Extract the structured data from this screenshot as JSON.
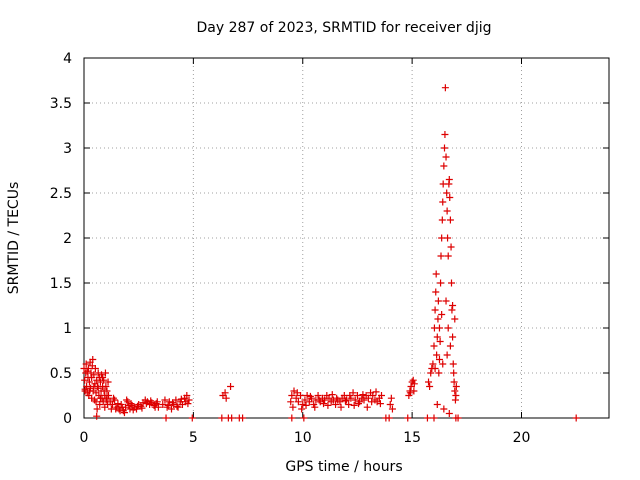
{
  "chart_data": {
    "type": "scatter",
    "title": "Day 287 of 2023, SRMTID for receiver djig",
    "xlabel": "GPS time / hours",
    "ylabel": "SRMTID / TECUs",
    "xlim": [
      0,
      24
    ],
    "ylim": [
      0,
      4
    ],
    "x_ticks": [
      0,
      5,
      10,
      15,
      20
    ],
    "y_ticks": [
      0,
      0.5,
      1,
      1.5,
      2,
      2.5,
      3,
      3.5,
      4
    ],
    "x_tick_labels": [
      "0",
      "5",
      "10",
      "15",
      "20"
    ],
    "y_tick_labels": [
      "0",
      "0.5",
      "1",
      "1.5",
      "2",
      "2.5",
      "3",
      "3.5",
      "4"
    ],
    "grid": true,
    "marker": "+",
    "series": [
      {
        "name": "SRMTID",
        "color": "#dd0000",
        "points": [
          [
            0.0,
            0.55
          ],
          [
            0.03,
            0.42
          ],
          [
            0.05,
            0.3
          ],
          [
            0.08,
            0.5
          ],
          [
            0.1,
            0.6
          ],
          [
            0.12,
            0.35
          ],
          [
            0.15,
            0.28
          ],
          [
            0.18,
            0.45
          ],
          [
            0.2,
            0.55
          ],
          [
            0.22,
            0.25
          ],
          [
            0.25,
            0.4
          ],
          [
            0.28,
            0.62
          ],
          [
            0.3,
            0.33
          ],
          [
            0.32,
            0.5
          ],
          [
            0.35,
            0.22
          ],
          [
            0.38,
            0.58
          ],
          [
            0.4,
            0.65
          ],
          [
            0.42,
            0.3
          ],
          [
            0.45,
            0.48
          ],
          [
            0.48,
            0.2
          ],
          [
            0.5,
            0.38
          ],
          [
            0.52,
            0.55
          ],
          [
            0.55,
            0.28
          ],
          [
            0.58,
            0.42
          ],
          [
            0.6,
            0.1
          ],
          [
            0.62,
            0.35
          ],
          [
            0.65,
            0.5
          ],
          [
            0.68,
            0.25
          ],
          [
            0.7,
            0.45
          ],
          [
            0.72,
            0.15
          ],
          [
            0.75,
            0.4
          ],
          [
            0.78,
            0.3
          ],
          [
            0.8,
            0.48
          ],
          [
            0.82,
            0.22
          ],
          [
            0.85,
            0.35
          ],
          [
            0.88,
            0.18
          ],
          [
            0.9,
            0.42
          ],
          [
            0.92,
            0.3
          ],
          [
            0.95,
            0.25
          ],
          [
            0.98,
            0.5
          ],
          [
            1.0,
            0.35
          ],
          [
            1.02,
            0.2
          ],
          [
            1.05,
            0.3
          ],
          [
            1.08,
            0.15
          ],
          [
            1.1,
            0.4
          ],
          [
            1.12,
            0.25
          ],
          [
            0.05,
            0.32
          ],
          [
            0.15,
            0.52
          ],
          [
            0.25,
            0.3
          ],
          [
            0.35,
            0.45
          ],
          [
            0.45,
            0.35
          ],
          [
            0.55,
            0.18
          ],
          [
            0.65,
            0.33
          ],
          [
            0.75,
            0.22
          ],
          [
            0.85,
            0.45
          ],
          [
            0.95,
            0.12
          ],
          [
            1.05,
            0.22
          ],
          [
            0.58,
            0.02
          ],
          [
            1.2,
            0.18
          ],
          [
            1.3,
            0.15
          ],
          [
            1.4,
            0.2
          ],
          [
            1.5,
            0.12
          ],
          [
            1.6,
            0.1
          ],
          [
            1.7,
            0.15
          ],
          [
            1.8,
            0.08
          ],
          [
            1.9,
            0.12
          ],
          [
            2.0,
            0.18
          ],
          [
            2.1,
            0.1
          ],
          [
            2.2,
            0.14
          ],
          [
            2.3,
            0.12
          ],
          [
            2.4,
            0.1
          ],
          [
            2.5,
            0.15
          ],
          [
            2.6,
            0.13
          ],
          [
            2.7,
            0.17
          ],
          [
            2.8,
            0.2
          ],
          [
            2.9,
            0.18
          ],
          [
            3.0,
            0.15
          ],
          [
            3.1,
            0.17
          ],
          [
            3.2,
            0.14
          ],
          [
            3.3,
            0.16
          ],
          [
            3.4,
            0.12
          ],
          [
            1.25,
            0.1
          ],
          [
            1.35,
            0.22
          ],
          [
            1.45,
            0.1
          ],
          [
            1.55,
            0.16
          ],
          [
            1.65,
            0.08
          ],
          [
            1.75,
            0.12
          ],
          [
            1.85,
            0.06
          ],
          [
            1.95,
            0.2
          ],
          [
            2.05,
            0.14
          ],
          [
            2.15,
            0.16
          ],
          [
            2.25,
            0.09
          ],
          [
            2.45,
            0.13
          ],
          [
            2.65,
            0.11
          ],
          [
            2.85,
            0.16
          ],
          [
            3.05,
            0.19
          ],
          [
            3.25,
            0.12
          ],
          [
            3.35,
            0.18
          ],
          [
            3.6,
            0.15
          ],
          [
            3.7,
            0.2
          ],
          [
            3.8,
            0.12
          ],
          [
            3.9,
            0.18
          ],
          [
            4.0,
            0.1
          ],
          [
            4.1,
            0.15
          ],
          [
            4.2,
            0.2
          ],
          [
            4.3,
            0.12
          ],
          [
            4.4,
            0.18
          ],
          [
            4.5,
            0.15
          ],
          [
            4.6,
            0.22
          ],
          [
            4.7,
            0.25
          ],
          [
            4.8,
            0.2
          ],
          [
            3.75,
            0.0
          ],
          [
            4.95,
            0.0
          ],
          [
            3.85,
            0.14
          ],
          [
            4.05,
            0.17
          ],
          [
            4.25,
            0.13
          ],
          [
            4.45,
            0.21
          ],
          [
            4.65,
            0.18
          ],
          [
            4.75,
            0.16
          ],
          [
            6.3,
            0.0
          ],
          [
            6.35,
            0.25
          ],
          [
            6.45,
            0.28
          ],
          [
            6.5,
            0.22
          ],
          [
            6.7,
            0.35
          ],
          [
            6.6,
            0.0
          ],
          [
            6.75,
            0.0
          ],
          [
            7.1,
            0.0
          ],
          [
            7.25,
            0.0
          ],
          [
            9.5,
            0.0
          ],
          [
            9.45,
            0.18
          ],
          [
            9.5,
            0.25
          ],
          [
            9.6,
            0.3
          ],
          [
            9.7,
            0.22
          ],
          [
            9.8,
            0.18
          ],
          [
            9.9,
            0.25
          ],
          [
            10.0,
            0.15
          ],
          [
            10.1,
            0.2
          ],
          [
            10.2,
            0.25
          ],
          [
            10.3,
            0.18
          ],
          [
            10.4,
            0.22
          ],
          [
            10.5,
            0.15
          ],
          [
            10.6,
            0.2
          ],
          [
            10.7,
            0.25
          ],
          [
            10.8,
            0.18
          ],
          [
            10.9,
            0.22
          ],
          [
            11.0,
            0.2
          ],
          [
            11.1,
            0.25
          ],
          [
            11.2,
            0.22
          ],
          [
            11.3,
            0.18
          ],
          [
            11.4,
            0.2
          ],
          [
            11.5,
            0.15
          ],
          [
            11.6,
            0.2
          ],
          [
            11.7,
            0.18
          ],
          [
            11.8,
            0.22
          ],
          [
            11.9,
            0.25
          ],
          [
            12.0,
            0.2
          ],
          [
            12.1,
            0.15
          ],
          [
            12.2,
            0.22
          ],
          [
            12.3,
            0.28
          ],
          [
            12.4,
            0.2
          ],
          [
            12.5,
            0.25
          ],
          [
            12.6,
            0.18
          ],
          [
            12.7,
            0.22
          ],
          [
            12.8,
            0.2
          ],
          [
            12.9,
            0.25
          ],
          [
            13.0,
            0.22
          ],
          [
            13.1,
            0.28
          ],
          [
            13.2,
            0.25
          ],
          [
            13.3,
            0.2
          ],
          [
            13.4,
            0.18
          ],
          [
            13.5,
            0.22
          ],
          [
            13.6,
            0.25
          ],
          [
            9.55,
            0.12
          ],
          [
            9.75,
            0.28
          ],
          [
            9.95,
            0.1
          ],
          [
            10.15,
            0.14
          ],
          [
            10.35,
            0.24
          ],
          [
            10.55,
            0.12
          ],
          [
            10.75,
            0.2
          ],
          [
            10.95,
            0.16
          ],
          [
            11.15,
            0.14
          ],
          [
            11.35,
            0.26
          ],
          [
            11.55,
            0.22
          ],
          [
            11.75,
            0.12
          ],
          [
            11.95,
            0.19
          ],
          [
            12.15,
            0.25
          ],
          [
            12.35,
            0.14
          ],
          [
            12.55,
            0.16
          ],
          [
            12.75,
            0.26
          ],
          [
            12.95,
            0.12
          ],
          [
            13.15,
            0.18
          ],
          [
            13.35,
            0.29
          ],
          [
            13.55,
            0.16
          ],
          [
            10.05,
            0.0
          ],
          [
            13.8,
            0.0
          ],
          [
            14.0,
            0.15
          ],
          [
            14.05,
            0.22
          ],
          [
            14.1,
            0.1
          ],
          [
            13.95,
            0.0
          ],
          [
            14.8,
            0.0
          ],
          [
            14.85,
            0.25
          ],
          [
            14.9,
            0.3
          ],
          [
            14.95,
            0.35
          ],
          [
            15.0,
            0.4
          ],
          [
            15.05,
            0.42
          ],
          [
            15.1,
            0.38
          ],
          [
            15.08,
            0.3
          ],
          [
            14.92,
            0.28
          ],
          [
            15.7,
            0.0
          ],
          [
            15.75,
            0.4
          ],
          [
            15.8,
            0.35
          ],
          [
            15.85,
            0.5
          ],
          [
            15.9,
            0.55
          ],
          [
            15.95,
            0.6
          ],
          [
            16.0,
            0.8
          ],
          [
            16.02,
            1.0
          ],
          [
            16.05,
            1.2
          ],
          [
            16.08,
            1.4
          ],
          [
            16.1,
            1.6
          ],
          [
            16.12,
            0.7
          ],
          [
            16.15,
            0.9
          ],
          [
            16.18,
            1.1
          ],
          [
            16.2,
            1.3
          ],
          [
            16.22,
            0.5
          ],
          [
            16.25,
            0.65
          ],
          [
            16.28,
            0.85
          ],
          [
            16.3,
            1.5
          ],
          [
            16.32,
            1.8
          ],
          [
            16.35,
            2.0
          ],
          [
            16.38,
            2.2
          ],
          [
            16.4,
            2.4
          ],
          [
            16.42,
            2.6
          ],
          [
            16.45,
            2.8
          ],
          [
            16.48,
            3.0
          ],
          [
            16.5,
            3.15
          ],
          [
            16.52,
            3.67
          ],
          [
            16.55,
            2.9
          ],
          [
            16.58,
            2.5
          ],
          [
            16.6,
            2.3
          ],
          [
            16.62,
            2.0
          ],
          [
            16.65,
            1.8
          ],
          [
            16.68,
            2.6
          ],
          [
            16.7,
            2.65
          ],
          [
            16.72,
            2.45
          ],
          [
            16.75,
            2.2
          ],
          [
            16.78,
            1.9
          ],
          [
            16.8,
            1.5
          ],
          [
            16.82,
            1.2
          ],
          [
            16.85,
            0.9
          ],
          [
            16.88,
            0.6
          ],
          [
            16.9,
            0.5
          ],
          [
            16.92,
            0.4
          ],
          [
            16.95,
            0.3
          ],
          [
            16.98,
            0.2
          ],
          [
            17.0,
            0.25
          ],
          [
            17.02,
            0.35
          ],
          [
            16.15,
            0.15
          ],
          [
            16.45,
            0.1
          ],
          [
            16.7,
            0.05
          ],
          [
            17.0,
            0.0
          ],
          [
            17.1,
            0.0
          ],
          [
            16.0,
            0.0
          ],
          [
            16.05,
            0.55
          ],
          [
            16.25,
            1.0
          ],
          [
            16.35,
            1.15
          ],
          [
            16.55,
            1.3
          ],
          [
            16.65,
            1.0
          ],
          [
            16.75,
            0.8
          ],
          [
            16.85,
            1.25
          ],
          [
            16.95,
            1.1
          ],
          [
            16.6,
            0.7
          ],
          [
            16.4,
            0.6
          ],
          [
            22.5,
            0.0
          ]
        ]
      }
    ]
  }
}
